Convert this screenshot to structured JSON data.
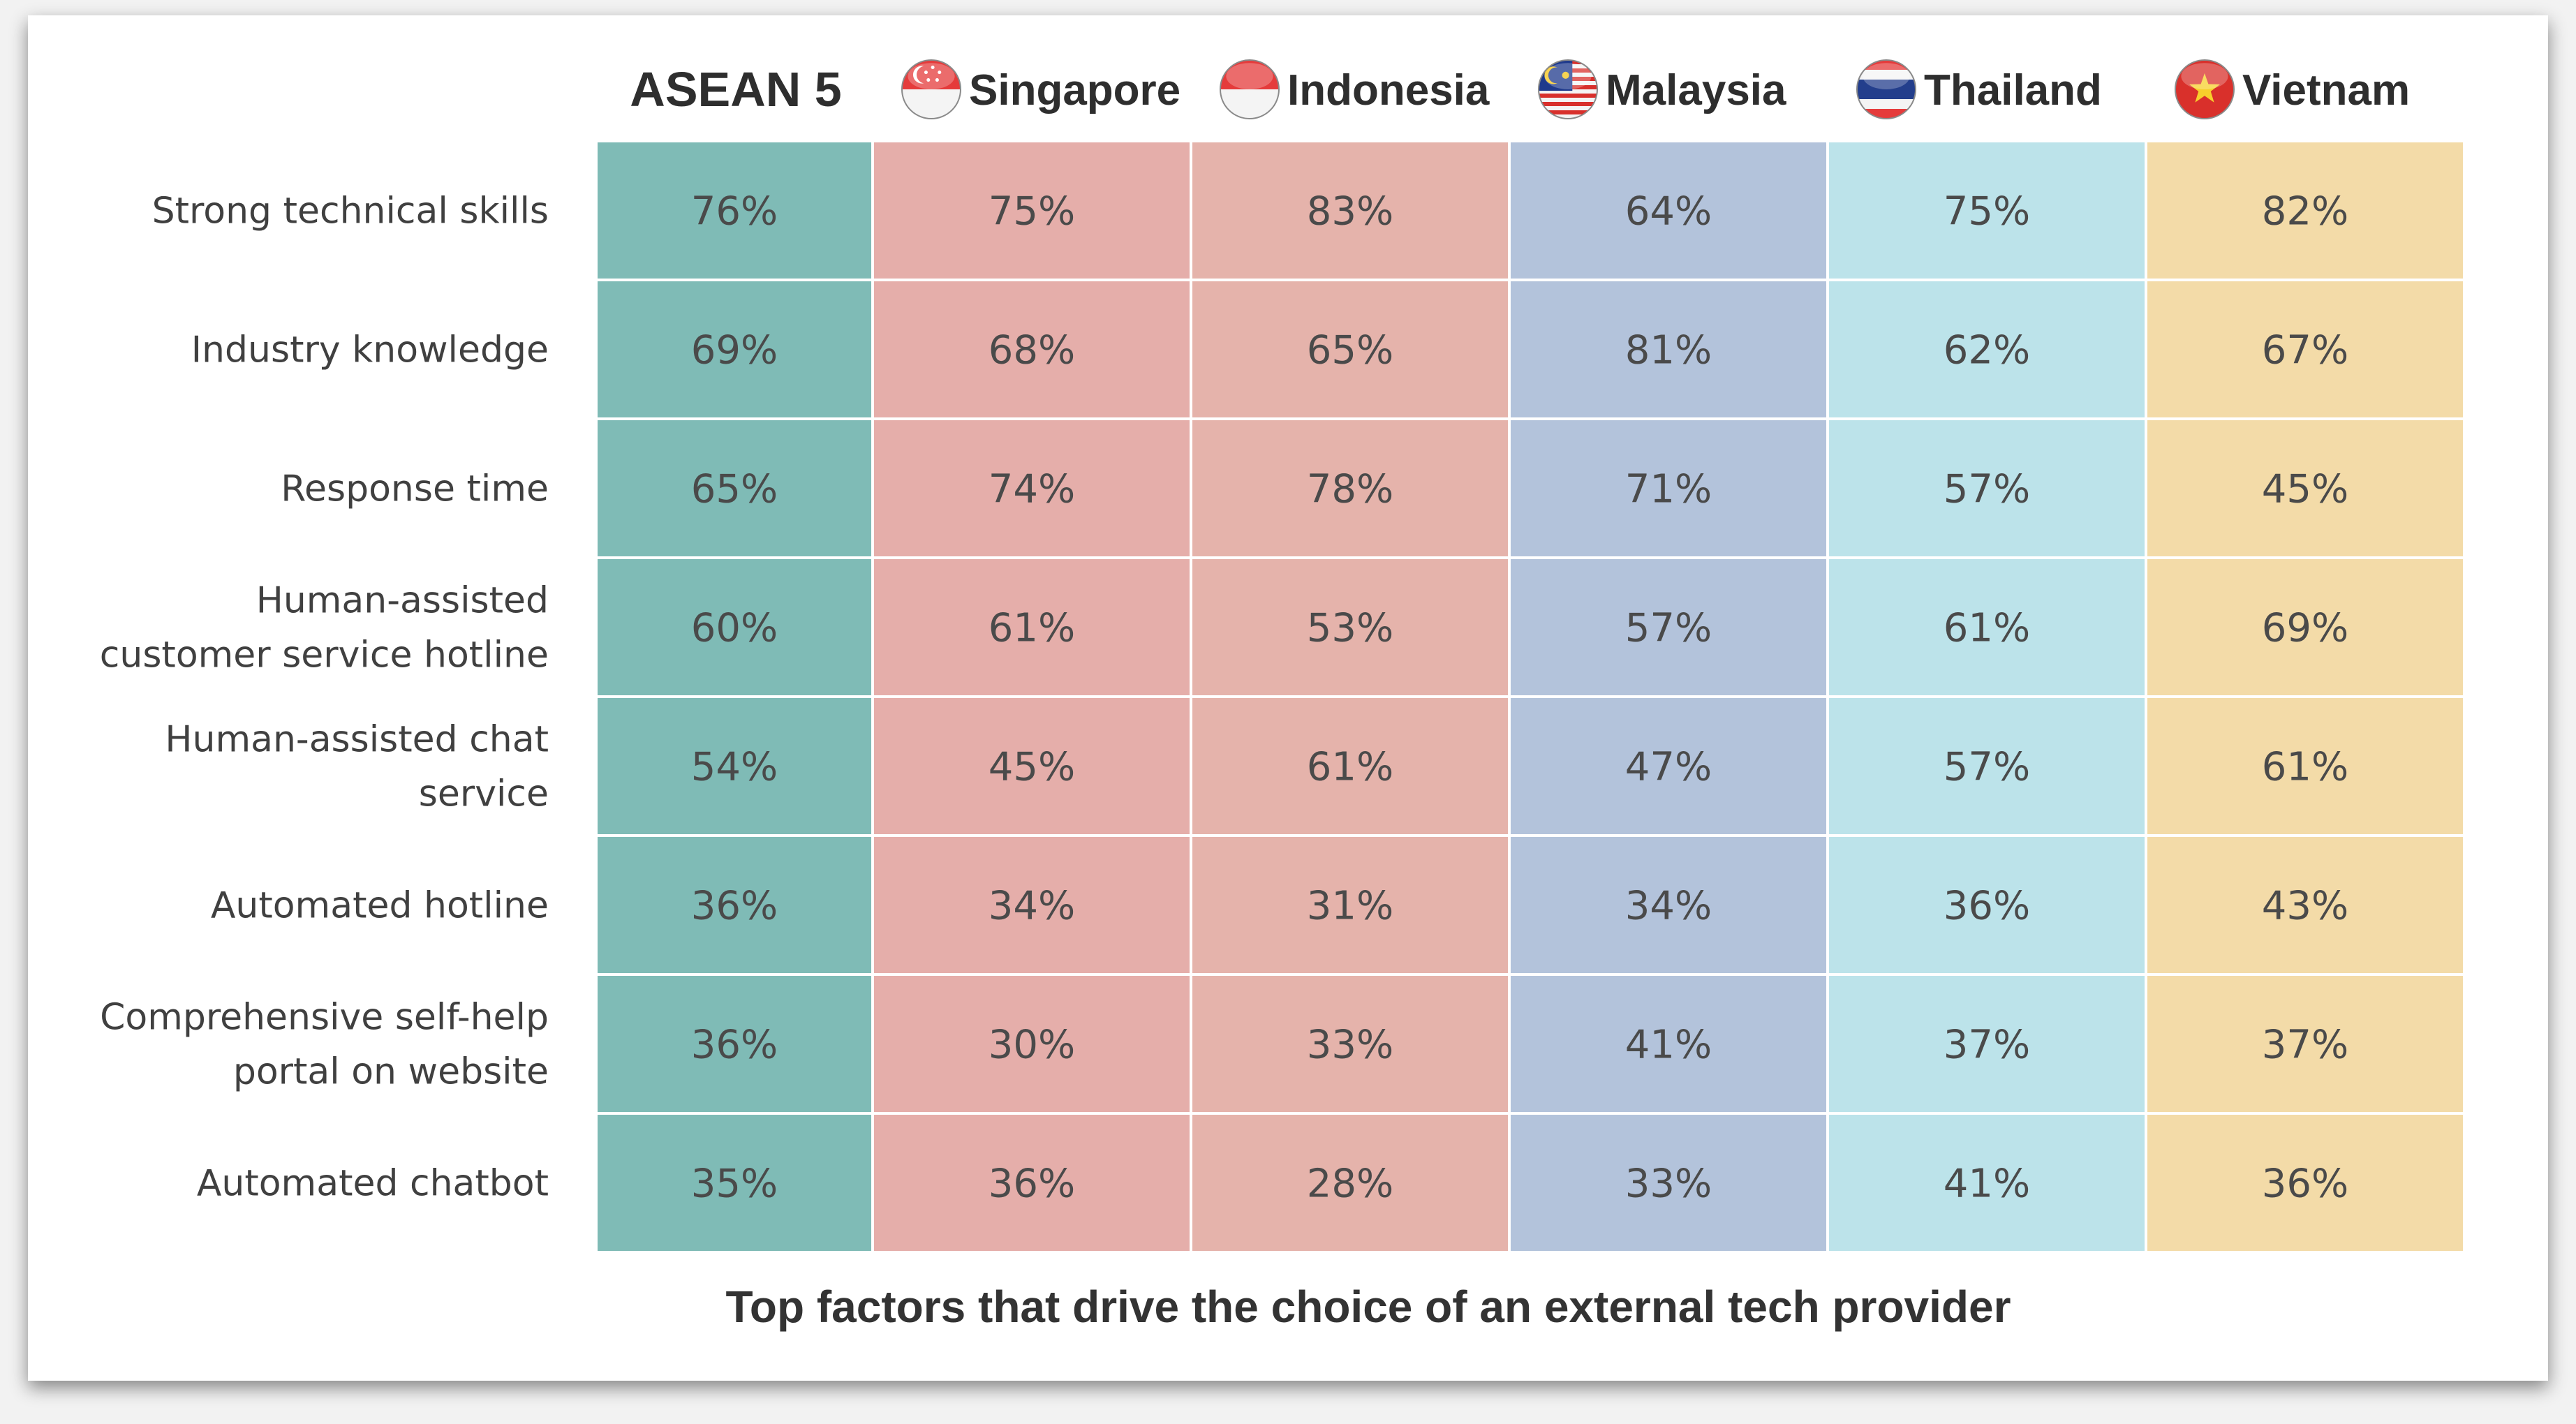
{
  "chart_data": {
    "type": "table",
    "title": "Top factors that drive the choice of an external tech provider",
    "columns": [
      {
        "name": "ASEAN 5",
        "color": "#7fbbb6",
        "flag": ""
      },
      {
        "name": "Singapore",
        "color": "#e5aeaa",
        "flag": "singapore-flag-icon"
      },
      {
        "name": "Indonesia",
        "color": "#e5b3ab",
        "flag": "indonesia-flag-icon"
      },
      {
        "name": "Malaysia",
        "color": "#b3c3db",
        "flag": "malaysia-flag-icon"
      },
      {
        "name": "Thailand",
        "color": "#bce3ea",
        "flag": "thailand-flag-icon"
      },
      {
        "name": "Vietnam",
        "color": "#f3dba8",
        "flag": "vietnam-flag-icon"
      }
    ],
    "rows": [
      {
        "label": [
          "Strong technical skills"
        ],
        "values": [
          "76%",
          "75%",
          "83%",
          "64%",
          "75%",
          "82%"
        ]
      },
      {
        "label": [
          "Industry knowledge"
        ],
        "values": [
          "69%",
          "68%",
          "65%",
          "81%",
          "62%",
          "67%"
        ]
      },
      {
        "label": [
          "Response time"
        ],
        "values": [
          "65%",
          "74%",
          "78%",
          "71%",
          "57%",
          "45%"
        ]
      },
      {
        "label": [
          "Human-assisted",
          "customer service hotline"
        ],
        "values": [
          "60%",
          "61%",
          "53%",
          "57%",
          "61%",
          "69%"
        ]
      },
      {
        "label": [
          "Human-assisted chat",
          "service"
        ],
        "values": [
          "54%",
          "45%",
          "61%",
          "47%",
          "57%",
          "61%"
        ]
      },
      {
        "label": [
          "Automated hotline"
        ],
        "values": [
          "36%",
          "34%",
          "31%",
          "34%",
          "36%",
          "43%"
        ]
      },
      {
        "label": [
          "Comprehensive self-help",
          "portal on website"
        ],
        "values": [
          "36%",
          "30%",
          "33%",
          "41%",
          "37%",
          "37%"
        ]
      },
      {
        "label": [
          "Automated chatbot"
        ],
        "values": [
          "35%",
          "36%",
          "28%",
          "33%",
          "41%",
          "36%"
        ]
      }
    ]
  }
}
